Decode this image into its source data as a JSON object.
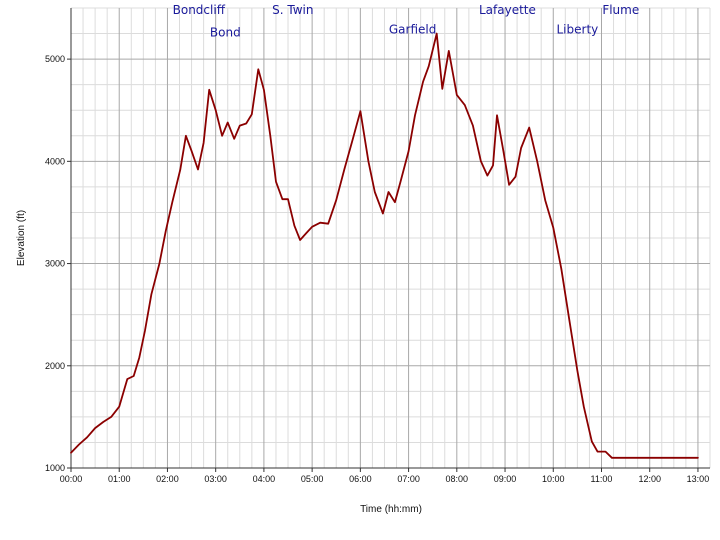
{
  "chart_data": {
    "type": "line",
    "title": "",
    "xlabel": "Time (hh:mm)",
    "ylabel": "Elevation (ft)",
    "xlim": [
      0,
      795
    ],
    "ylim": [
      1000,
      5500
    ],
    "grid": true,
    "x_ticks": [
      {
        "value": 0,
        "label": "00:00"
      },
      {
        "value": 60,
        "label": "01:00"
      },
      {
        "value": 120,
        "label": "02:00"
      },
      {
        "value": 180,
        "label": "03:00"
      },
      {
        "value": 240,
        "label": "04:00"
      },
      {
        "value": 300,
        "label": "05:00"
      },
      {
        "value": 360,
        "label": "06:00"
      },
      {
        "value": 420,
        "label": "07:00"
      },
      {
        "value": 480,
        "label": "08:00"
      },
      {
        "value": 540,
        "label": "09:00"
      },
      {
        "value": 600,
        "label": "10:00"
      },
      {
        "value": 660,
        "label": "11:00"
      },
      {
        "value": 720,
        "label": "12:00"
      },
      {
        "value": 780,
        "label": "13:00"
      }
    ],
    "y_ticks": [
      {
        "value": 1000,
        "label": "1000"
      },
      {
        "value": 2000,
        "label": "2000"
      },
      {
        "value": 3000,
        "label": "3000"
      },
      {
        "value": 4000,
        "label": "4000"
      },
      {
        "value": 5000,
        "label": "5000"
      }
    ],
    "series": [
      {
        "color": "#8b0000",
        "x": [
          0,
          10,
          20,
          30,
          40,
          50,
          60,
          70,
          78,
          85,
          92,
          100,
          110,
          118,
          126,
          136,
          143,
          150,
          158,
          165,
          172,
          180,
          188,
          195,
          203,
          210,
          218,
          225,
          233,
          240,
          248,
          255,
          263,
          270,
          278,
          285,
          293,
          300,
          310,
          320,
          330,
          340,
          350,
          360,
          370,
          378,
          388,
          395,
          403,
          410,
          420,
          428,
          438,
          445,
          455,
          462,
          470,
          480,
          490,
          500,
          510,
          518,
          525,
          530,
          538,
          545,
          553,
          560,
          570,
          580,
          590,
          600,
          610,
          620,
          630,
          638,
          648,
          655,
          665,
          673,
          683,
          690,
          700,
          710,
          720,
          730,
          740,
          750,
          760,
          770,
          775,
          780
        ],
        "y": [
          1150,
          1230,
          1300,
          1390,
          1450,
          1500,
          1600,
          1870,
          1900,
          2080,
          2340,
          2700,
          3000,
          3320,
          3600,
          3920,
          4250,
          4100,
          3920,
          4180,
          4700,
          4500,
          4250,
          4380,
          4220,
          4350,
          4370,
          4460,
          4900,
          4700,
          4250,
          3800,
          3630,
          3630,
          3370,
          3230,
          3300,
          3360,
          3400,
          3390,
          3620,
          3920,
          4200,
          4490,
          4000,
          3700,
          3490,
          3700,
          3600,
          3800,
          4100,
          4450,
          4780,
          4930,
          5250,
          4710,
          5080,
          4650,
          4550,
          4350,
          4000,
          3860,
          3960,
          4450,
          4100,
          3770,
          3850,
          4130,
          4330,
          4000,
          3620,
          3350,
          2950,
          2450,
          1950,
          1600,
          1260,
          1160,
          1160,
          1100,
          1100,
          1100,
          1100,
          1100,
          1100,
          1100,
          1100,
          1100,
          1100,
          1100,
          1100,
          1100
        ]
      }
    ],
    "annotations": [
      {
        "text": "Bondcliff",
        "x": 159,
        "y": 5440
      },
      {
        "text": "Bond",
        "x": 192,
        "y": 5220
      },
      {
        "text": "S. Twin",
        "x": 276,
        "y": 5440
      },
      {
        "text": "Garfield",
        "x": 425,
        "y": 5250
      },
      {
        "text": "Lafayette",
        "x": 543,
        "y": 5440
      },
      {
        "text": "Liberty",
        "x": 630,
        "y": 5250
      },
      {
        "text": "Flume",
        "x": 684,
        "y": 5440
      }
    ]
  }
}
